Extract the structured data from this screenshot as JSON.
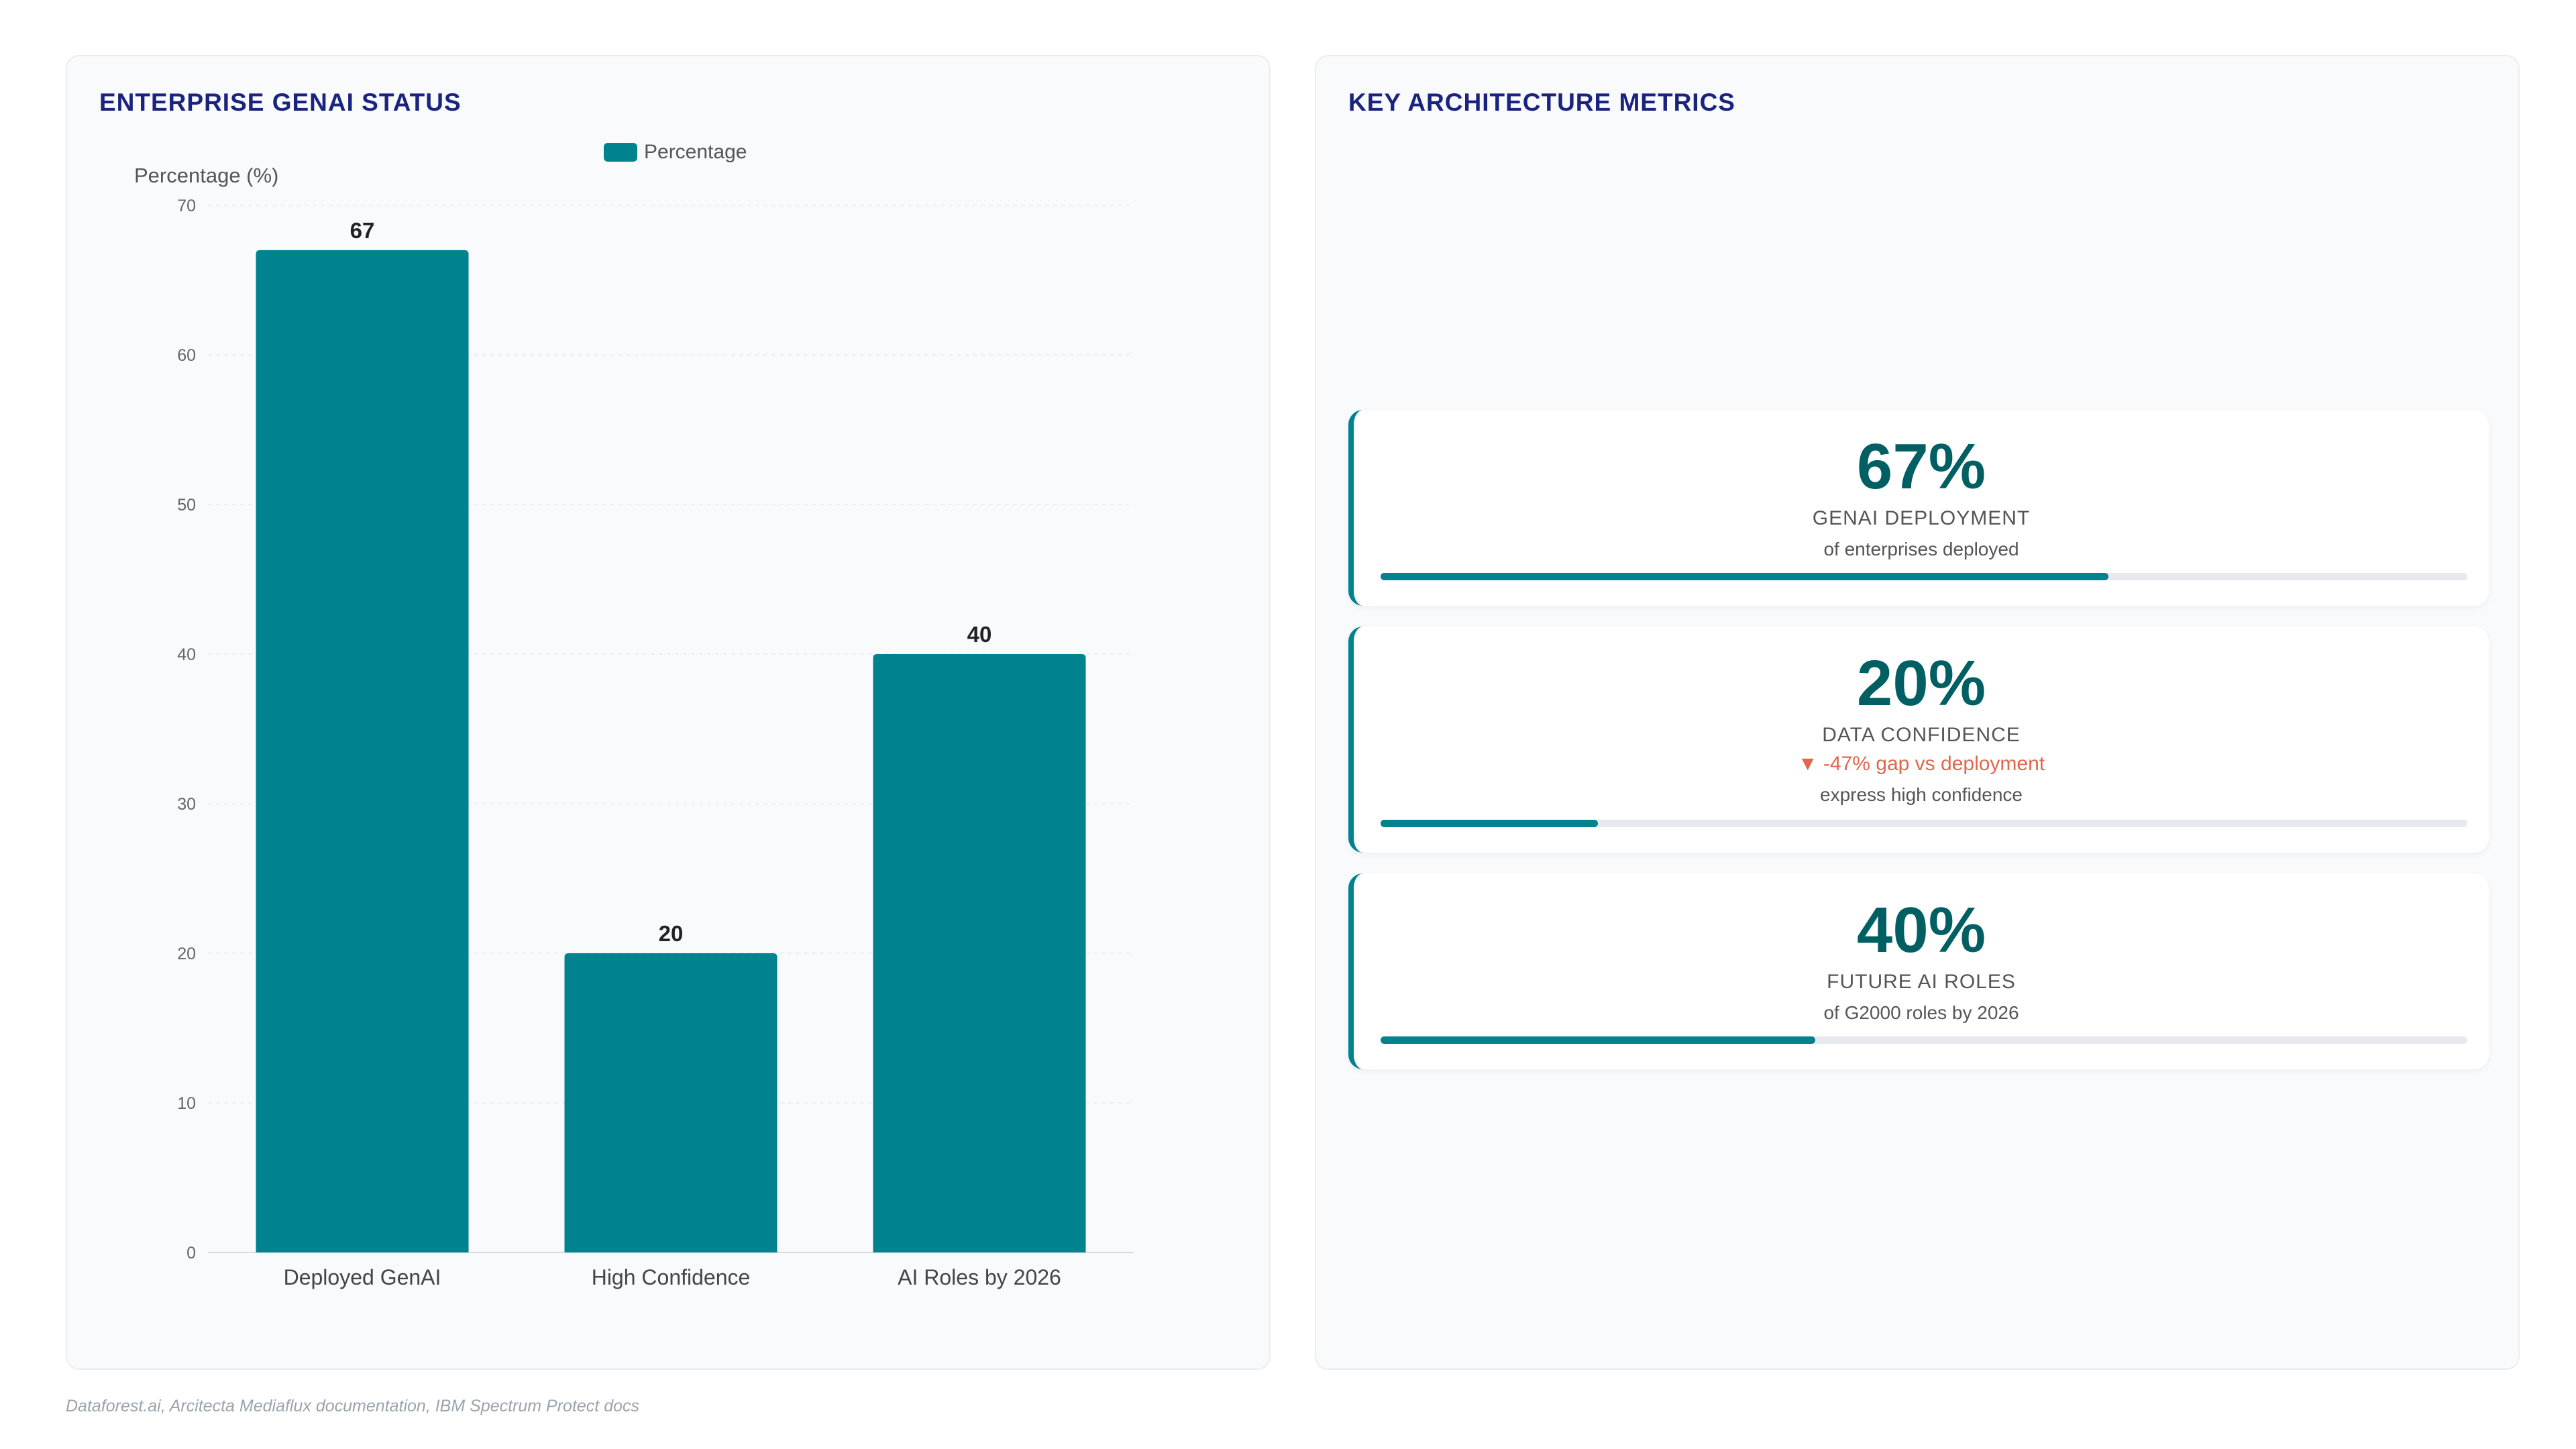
{
  "left_panel": {
    "title": "ENTERPRISE GENAI STATUS"
  },
  "right_panel": {
    "title": "KEY ARCHITECTURE METRICS"
  },
  "chart_data": {
    "type": "bar",
    "categories": [
      "Deployed GenAI",
      "High Confidence",
      "AI Roles by 2026"
    ],
    "series": [
      {
        "name": "Percentage",
        "values": [
          67,
          20,
          40
        ]
      }
    ],
    "ylabel": "Percentage (%)",
    "xlabel": "",
    "ylim": [
      0,
      70
    ],
    "yticks": [
      0,
      10,
      20,
      30,
      40,
      50,
      60,
      70
    ],
    "grid": true,
    "legend_position": "top",
    "bar_color": "#00838f",
    "data_labels": true
  },
  "metrics": [
    {
      "value": "67%",
      "label": "GENAI DEPLOYMENT",
      "delta": "",
      "sub": "of enterprises deployed",
      "progress": 0.67
    },
    {
      "value": "20%",
      "label": "DATA CONFIDENCE",
      "delta": "▼ -47% gap vs deployment",
      "sub": "express high confidence",
      "progress": 0.2
    },
    {
      "value": "40%",
      "label": "FUTURE AI ROLES",
      "delta": "",
      "sub": "of G2000 roles by 2026",
      "progress": 0.4
    }
  ],
  "colors": {
    "accent": "#00838f",
    "title": "#1a237e",
    "value": "#005f63",
    "negative": "#e0674c"
  },
  "footer": {
    "source": "Dataforest.ai, Arcitecta Mediaflux documentation, IBM Spectrum Protect docs"
  }
}
